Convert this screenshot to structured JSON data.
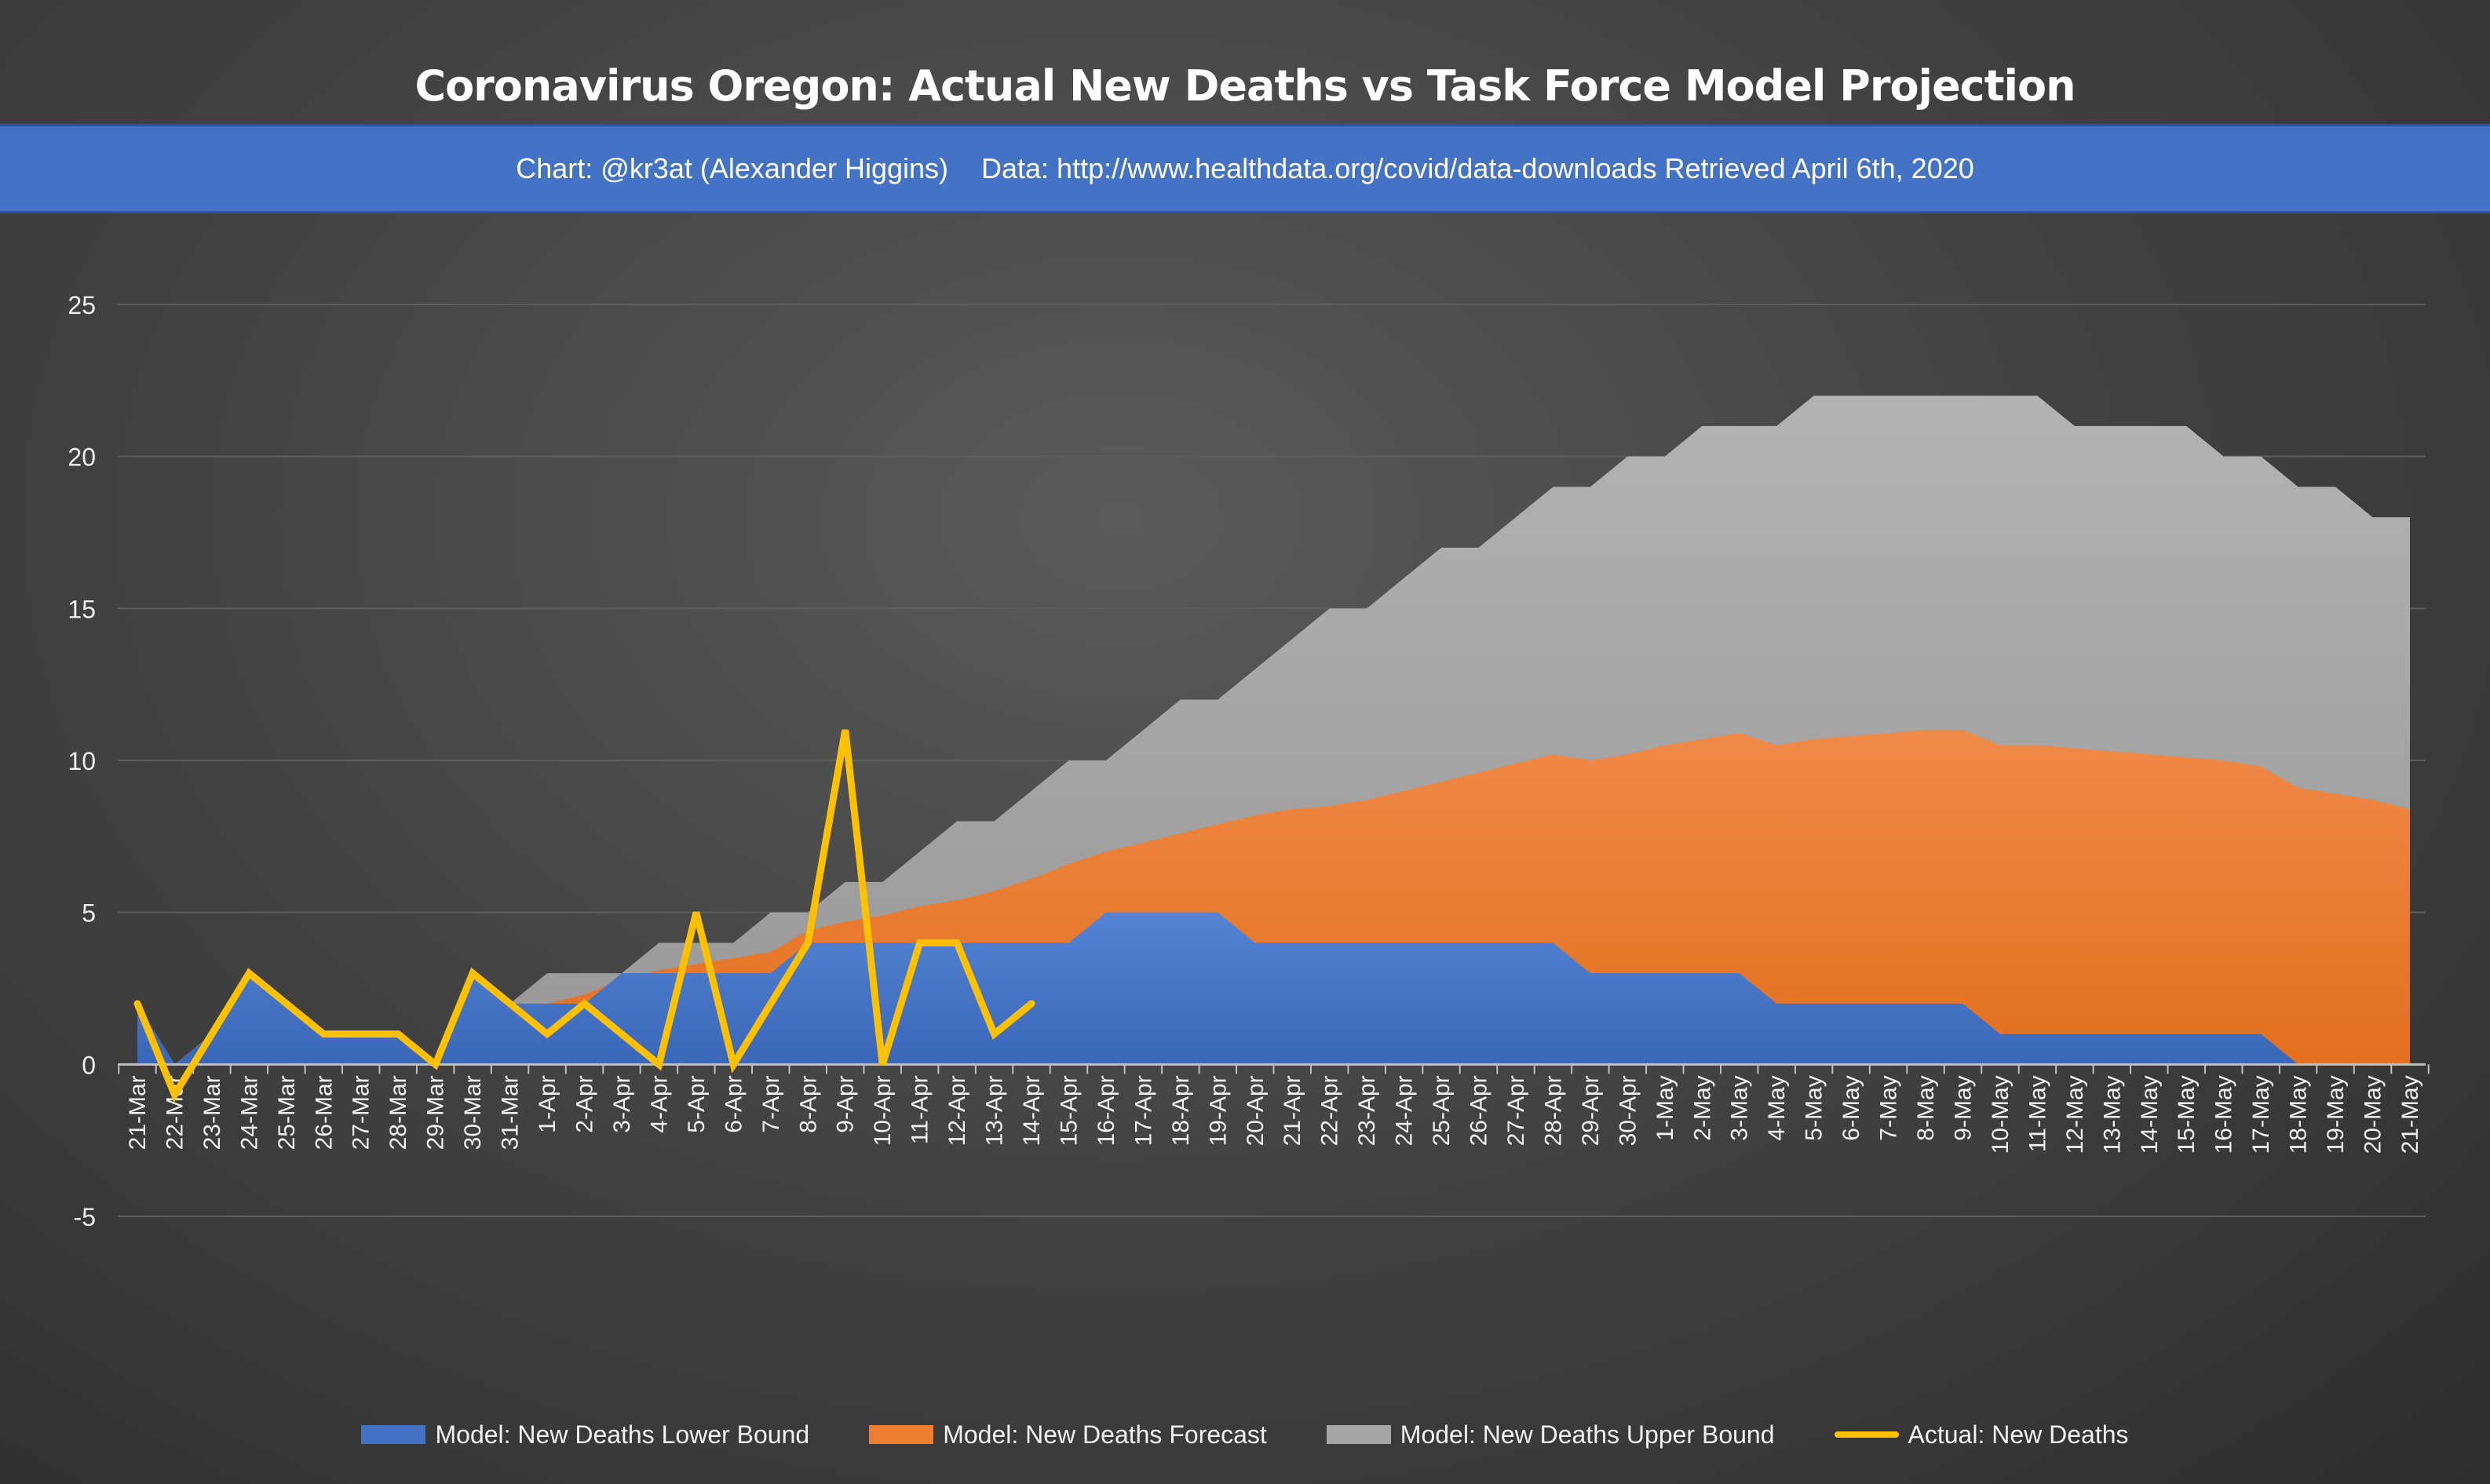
{
  "title": "Coronavirus Oregon: Actual New Deaths vs Task Force Model Projection",
  "subtitle": {
    "credit": "Chart: @kr3at (Alexander Higgins)",
    "source": "Data: http://www.healthdata.org/covid/data-downloads Retrieved April 6th, 2020"
  },
  "colors": {
    "banner": "#4472c4",
    "lower": "#4472c4",
    "forecast": "#ed7d31",
    "upper": "#a5a5a5",
    "actual": "#ffc000"
  },
  "chart_data": {
    "type": "area",
    "title": "Coronavirus Oregon: Actual New Deaths vs Task Force Model Projection",
    "ylim": [
      -5,
      25
    ],
    "yticks": [
      -5,
      0,
      5,
      10,
      15,
      20,
      25
    ],
    "ytick_labels": [
      "-5",
      "0",
      "5",
      "10",
      "15",
      "20",
      "25"
    ],
    "grid": true,
    "legend_position": "bottom",
    "categories": [
      "21-Mar",
      "22-Mar",
      "23-Mar",
      "24-Mar",
      "25-Mar",
      "26-Mar",
      "27-Mar",
      "28-Mar",
      "29-Mar",
      "30-Mar",
      "31-Mar",
      "1-Apr",
      "2-Apr",
      "3-Apr",
      "4-Apr",
      "5-Apr",
      "6-Apr",
      "7-Apr",
      "8-Apr",
      "9-Apr",
      "10-Apr",
      "11-Apr",
      "12-Apr",
      "13-Apr",
      "14-Apr",
      "15-Apr",
      "16-Apr",
      "17-Apr",
      "18-Apr",
      "19-Apr",
      "20-Apr",
      "21-Apr",
      "22-Apr",
      "23-Apr",
      "24-Apr",
      "25-Apr",
      "26-Apr",
      "27-Apr",
      "28-Apr",
      "29-Apr",
      "30-Apr",
      "1-May",
      "2-May",
      "3-May",
      "4-May",
      "5-May",
      "6-May",
      "7-May",
      "8-May",
      "9-May",
      "10-May",
      "11-May",
      "12-May",
      "13-May",
      "14-May",
      "15-May",
      "16-May",
      "17-May",
      "18-May",
      "19-May",
      "20-May",
      "21-May"
    ],
    "series": [
      {
        "name": "Model: New Deaths Upper Bound",
        "kind": "area",
        "values": [
          2,
          0,
          1,
          3,
          2,
          1,
          1,
          1,
          0,
          3,
          2,
          3,
          3,
          3,
          4,
          4,
          4,
          5,
          5,
          6,
          6,
          7,
          8,
          8,
          9,
          10,
          10,
          11,
          12,
          12,
          13,
          14,
          15,
          15,
          16,
          17,
          17,
          18,
          19,
          19,
          20,
          20,
          21,
          21,
          21,
          22,
          22,
          22,
          22,
          22,
          22,
          22,
          21,
          21,
          21,
          21,
          20,
          20,
          19,
          19,
          18,
          18
        ]
      },
      {
        "name": "Model: New Deaths Forecast",
        "kind": "area",
        "values": [
          2,
          0,
          1,
          3,
          2,
          1,
          1,
          1,
          0,
          3,
          2,
          2,
          2.3,
          2.8,
          3.1,
          3.3,
          3.5,
          3.7,
          4.4,
          4.7,
          4.9,
          5.2,
          5.4,
          5.7,
          6.1,
          6.6,
          7.0,
          7.3,
          7.6,
          7.9,
          8.2,
          8.4,
          8.5,
          8.7,
          9.0,
          9.3,
          9.6,
          9.9,
          10.2,
          10.0,
          10.2,
          10.5,
          10.7,
          10.9,
          10.5,
          10.7,
          10.8,
          10.9,
          11.0,
          11.0,
          10.5,
          10.5,
          10.4,
          10.3,
          10.2,
          10.1,
          10.0,
          9.8,
          9.1,
          8.9,
          8.7,
          8.4
        ]
      },
      {
        "name": "Model: New Deaths Lower Bound",
        "kind": "area",
        "values": [
          2,
          0,
          1,
          3,
          2,
          1,
          1,
          1,
          0,
          3,
          2,
          2,
          2,
          3,
          3,
          3,
          3,
          3,
          4,
          4,
          4,
          4,
          4,
          4,
          4,
          4,
          5,
          5,
          5,
          5,
          4,
          4,
          4,
          4,
          4,
          4,
          4,
          4,
          4,
          3,
          3,
          3,
          3,
          3,
          2,
          2,
          2,
          2,
          2,
          2,
          1,
          1,
          1,
          1,
          1,
          1,
          1,
          1,
          0,
          0,
          0,
          0
        ]
      },
      {
        "name": "Actual: New Deaths",
        "kind": "line",
        "values": [
          2,
          -1,
          1,
          3,
          2,
          1,
          1,
          1,
          0,
          3,
          2,
          1,
          2,
          1,
          0,
          5,
          0,
          2,
          4,
          11,
          0,
          4,
          4,
          1,
          2,
          null,
          null,
          null,
          null,
          null,
          null,
          null,
          null,
          null,
          null,
          null,
          null,
          null,
          null,
          null,
          null,
          null,
          null,
          null,
          null,
          null,
          null,
          null,
          null,
          null,
          null,
          null,
          null,
          null,
          null,
          null,
          null,
          null,
          null,
          null,
          null,
          null
        ]
      }
    ]
  },
  "legend": [
    {
      "label": "Model: New Deaths Lower Bound",
      "kind": "area",
      "color": "#4472c4"
    },
    {
      "label": "Model: New Deaths Forecast",
      "kind": "area",
      "color": "#ed7d31"
    },
    {
      "label": "Model: New Deaths Upper Bound",
      "kind": "area",
      "color": "#a5a5a5"
    },
    {
      "label": "Actual: New Deaths",
      "kind": "line",
      "color": "#ffc000"
    }
  ]
}
